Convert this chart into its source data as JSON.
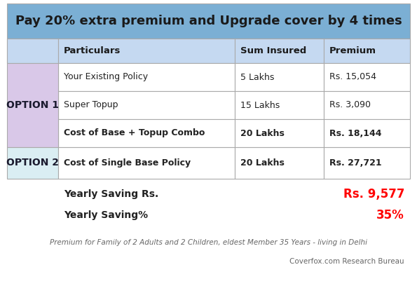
{
  "title": "Pay 20% extra premium and Upgrade cover by 4 times",
  "title_bg": "#7bafd4",
  "title_color": "#1a1a1a",
  "header_bg": "#c5d9f1",
  "header_color": "#1a1a1a",
  "option1_bg": "#d9c8e8",
  "option2_bg": "#daeef3",
  "white_bg": "#ffffff",
  "outer_bg": "#ffffff",
  "border_color": "#aaaaaa",
  "col_labels": [
    "Particulars",
    "Sum Insured",
    "Premium"
  ],
  "option1_label": "OPTION 1",
  "option2_label": "OPTION 2",
  "rows_option1": [
    [
      "Your Existing Policy",
      "5 Lakhs",
      "Rs. 15,054",
      false
    ],
    [
      "Super Topup",
      "15 Lakhs",
      "Rs. 3,090",
      false
    ],
    [
      "Cost of Base + Topup Combo",
      "20 Lakhs",
      "Rs. 18,144",
      true
    ]
  ],
  "rows_option2": [
    [
      "Cost of Single Base Policy",
      "20 Lakhs",
      "Rs. 27,721",
      true
    ]
  ],
  "saving_label": "Yearly Saving Rs.",
  "saving_value": "Rs. 9,577",
  "saving_pct_label": "Yearly Saving%",
  "saving_pct_value": "35%",
  "saving_color": "#ff0000",
  "footer1": "Premium for Family of 2 Adults and 2 Children, eldest Member 35 Years - living in Delhi",
  "footer2": "Coverfox.com Research Bureau",
  "footer_color": "#666666",
  "figsize": [
    5.95,
    4.08
  ],
  "dpi": 100
}
